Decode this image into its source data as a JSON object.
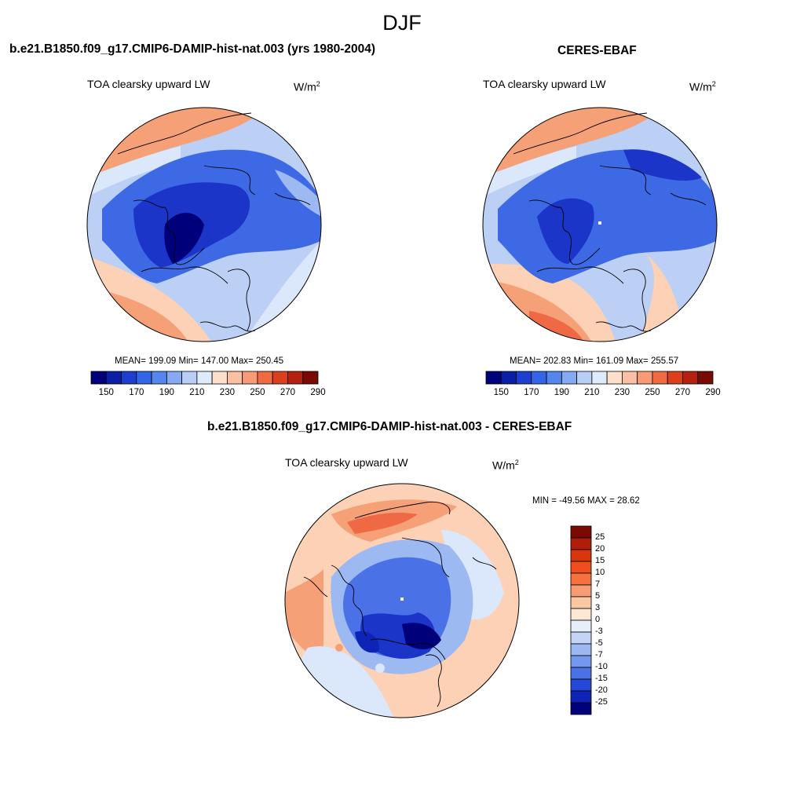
{
  "figure": {
    "season": "DJF",
    "panels": [
      {
        "title": "b.e21.B1850.f09_g17.CMIP6-DAMIP-hist-nat.003 (yrs 1980-2004)",
        "variable": "TOA clearsky upward LW",
        "units_base": "W/m",
        "units_exp": "2",
        "stats": "MEAN= 199.09  Min= 147.00  Max= 250.45",
        "mean": 199.09,
        "min": 147.0,
        "max": 250.45
      },
      {
        "title": "CERES-EBAF",
        "variable": "TOA clearsky upward LW",
        "units_base": "W/m",
        "units_exp": "2",
        "stats": "MEAN= 202.83  Min= 161.09  Max= 255.57",
        "mean": 202.83,
        "min": 161.09,
        "max": 255.57
      },
      {
        "title": "b.e21.B1850.f09_g17.CMIP6-DAMIP-hist-nat.003 - CERES-EBAF",
        "variable": "TOA clearsky upward LW",
        "units_base": "W/m",
        "units_exp": "2",
        "stats": "MIN = -49.56 MAX =  28.62",
        "min": -49.56,
        "max": 28.62
      }
    ],
    "colorbar_abs": {
      "labels": [
        "150",
        "170",
        "190",
        "210",
        "230",
        "250",
        "270",
        "290"
      ],
      "colors": [
        "#00007a",
        "#0a1ea8",
        "#1c3fd0",
        "#3366e6",
        "#5586ee",
        "#86aaf2",
        "#b8cef6",
        "#deebfa",
        "#fde0cc",
        "#fbbfa1",
        "#f79b76",
        "#f06a42",
        "#dd3f1c",
        "#b6200f",
        "#7a0a04"
      ]
    },
    "colorbar_diff": {
      "labels": [
        "25",
        "20",
        "15",
        "10",
        "7",
        "5",
        "3",
        "0",
        "-3",
        "-5",
        "-7",
        "-10",
        "-15",
        "-20",
        "-25"
      ],
      "colors": [
        "#7a0a04",
        "#b01d09",
        "#d7360f",
        "#f04e1e",
        "#f6713d",
        "#f89d73",
        "#fbc6a4",
        "#fde8d6",
        "#e6eefa",
        "#c3d4f6",
        "#9cb8f2",
        "#7498ee",
        "#4a72e6",
        "#2548d8",
        "#0e24b6",
        "#00007a"
      ]
    },
    "map_palette": {
      "deep_blue": "#1a35c8",
      "mid_blue": "#3d6ae4",
      "light_blue": "#9cb9f2",
      "pale_blue": "#dbe7fa",
      "peach": "#fcd1b6",
      "salmon": "#f6a078",
      "orange_red": "#ef6a44",
      "coastline": "#000000"
    }
  }
}
